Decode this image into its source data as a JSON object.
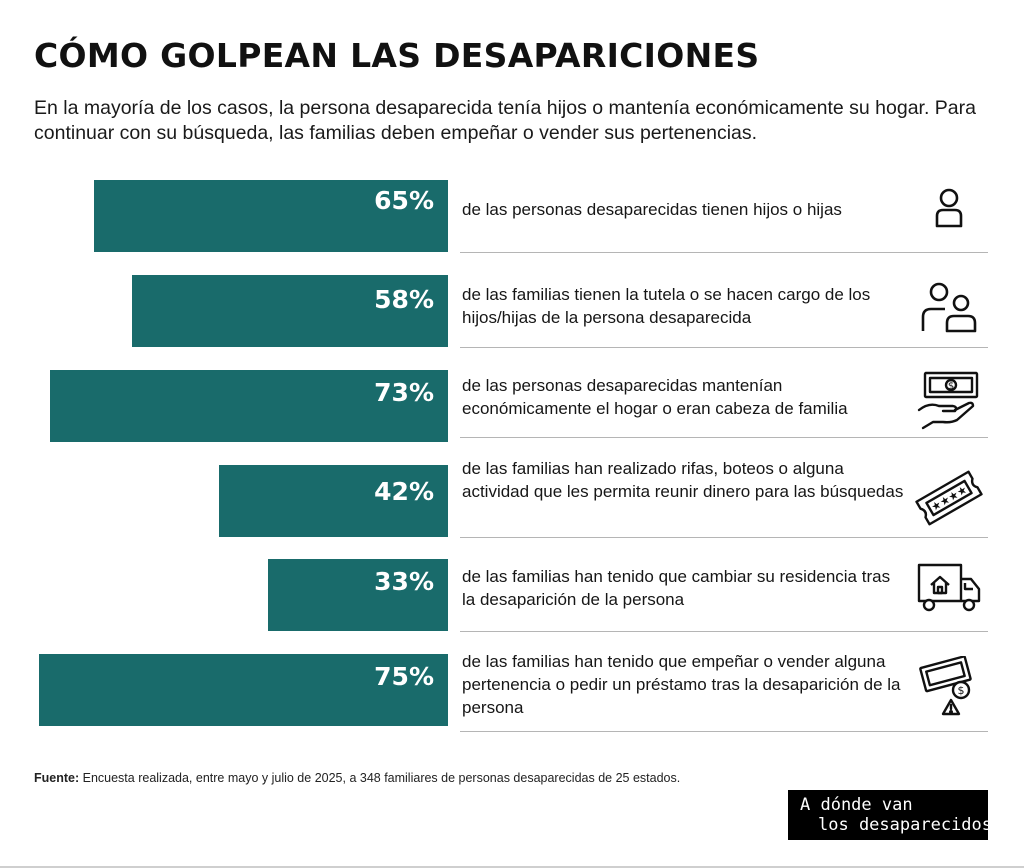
{
  "title": "CÓMO GOLPEAN LAS DESAPARICIONES",
  "subtitle": "En la mayoría de los casos, la persona desaparecida tenía hijos o mantenía económicamente su hogar. Para continuar con su búsqueda, las familias deben empeñar o vender sus pertenencias.",
  "colors": {
    "bar": "#196b6b",
    "text": "#111111",
    "divider": "#b5b5b5"
  },
  "chart_data": {
    "type": "bar",
    "orientation": "horizontal",
    "title": "CÓMO GOLPEAN LAS DESAPARICIONES",
    "unit": "%",
    "xlim": [
      0,
      100
    ],
    "categories": [
      "de las personas desaparecidas tienen hijos o hijas",
      "de las familias tienen la tutela o se hacen cargo de los hijos/hijas de la persona desaparecida",
      "de las personas desaparecidas mantenían económicamente el hogar o eran cabeza de familia",
      "de las familias han realizado rifas, boteos o alguna actividad que les permita reunir dinero para las búsquedas",
      "de las familias han tenido que cambiar su residencia tras la desaparición de la persona",
      "de las familias han tenido que empeñar o vender alguna pertenencia o pedir un préstamo tras la desaparición de la persona"
    ],
    "values": [
      65,
      58,
      73,
      42,
      33,
      75
    ],
    "labels": [
      "65%",
      "58%",
      "73%",
      "42%",
      "33%",
      "75%"
    ]
  },
  "rows": [
    {
      "value": 65,
      "label": "65%",
      "text": "de las personas desaparecidas tienen hijos o hijas",
      "icon": "person-icon"
    },
    {
      "value": 58,
      "label": "58%",
      "text": "de las familias tienen la tutela o se hacen cargo de los hijos/hijas de la persona desaparecida",
      "icon": "parent-child-icon"
    },
    {
      "value": 73,
      "label": "73%",
      "text": "de las personas desaparecidas mantenían económicamente el hogar o eran cabeza de familia",
      "icon": "hand-money-icon"
    },
    {
      "value": 42,
      "label": "42%",
      "text": "de las familias han realizado rifas, boteos o alguna actividad que les permita reunir dinero para las búsquedas",
      "icon": "raffle-ticket-icon"
    },
    {
      "value": 33,
      "label": "33%",
      "text": "de las familias han tenido que cambiar su residencia tras la desaparición de la persona",
      "icon": "moving-truck-icon"
    },
    {
      "value": 75,
      "label": "75%",
      "text": "de las familias han tenido que empeñar o vender alguna pertenencia o pedir un préstamo tras la desaparición de la persona",
      "icon": "money-warning-icon"
    }
  ],
  "footnote": {
    "label": "Fuente:",
    "text": " Encuesta realizada, entre mayo y julio de 2025, a 348 familiares de personas desaparecidas de 25 estados."
  },
  "logo": {
    "line1": "A dónde van",
    "line2": "los desaparecidos."
  }
}
